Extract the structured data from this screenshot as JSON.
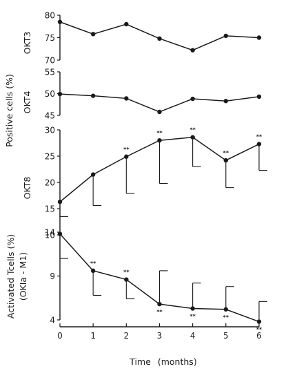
{
  "chart_data": [
    {
      "type": "line",
      "panel": "OKT3",
      "ylabel": "OKT3",
      "ylim": [
        70,
        80
      ],
      "yticks": [
        70,
        75,
        80
      ],
      "x": [
        0,
        1,
        2,
        3,
        4,
        5,
        6
      ],
      "series": [
        {
          "values": [
            78.5,
            75.8,
            78.0,
            74.8,
            72.2,
            75.4,
            75.0
          ]
        }
      ]
    },
    {
      "type": "line",
      "panel": "OKT4",
      "ylabel": "OKT4",
      "ylim": [
        45,
        55
      ],
      "yticks": [
        45,
        50,
        55
      ],
      "x": [
        0,
        1,
        2,
        3,
        4,
        5,
        6
      ],
      "series": [
        {
          "values": [
            49.9,
            49.5,
            48.9,
            45.8,
            48.8,
            48.3,
            49.3
          ]
        }
      ]
    },
    {
      "type": "line",
      "panel": "OKT8",
      "ylabel": "OKT8",
      "ylim": [
        10,
        30
      ],
      "yticks": [
        10,
        15,
        20,
        25,
        30
      ],
      "x": [
        0,
        1,
        2,
        3,
        4,
        5,
        6
      ],
      "series": [
        {
          "values": [
            16.3,
            21.5,
            24.9,
            28.0,
            28.6,
            24.2,
            27.3
          ],
          "error_low": [
            13.5,
            15.6,
            17.9,
            19.8,
            23.0,
            19.0,
            22.3
          ],
          "significance": [
            "",
            "",
            "**",
            "**",
            "**",
            "**",
            "**"
          ],
          "significance_position": "above"
        }
      ]
    },
    {
      "type": "line",
      "panel": "Activated T cells",
      "ylabel_lines": [
        "Activated Tcells (%)",
        "(OKIa - M1)"
      ],
      "ylim": [
        4,
        14
      ],
      "yticks": [
        4,
        9,
        14
      ],
      "x": [
        0,
        1,
        2,
        3,
        4,
        5,
        6
      ],
      "series": [
        {
          "values": [
            13.8,
            9.6,
            8.6,
            5.8,
            5.3,
            5.2,
            3.8
          ],
          "error_high": [
            null,
            null,
            null,
            9.6,
            8.2,
            7.8,
            6.1
          ],
          "error_low": [
            11.0,
            6.8,
            6.4,
            null,
            null,
            null,
            null
          ],
          "significance": [
            "",
            "**",
            "**",
            "**",
            "**",
            "**",
            "**"
          ],
          "significance_position": [
            "",
            "above",
            "above",
            "below",
            "below",
            "below",
            "below"
          ]
        }
      ]
    }
  ],
  "shared": {
    "positive_cells_label": "Positive cells (%)",
    "xlabel": "Time (months)",
    "xticks": [
      "0",
      "1",
      "2",
      "3",
      "4",
      "5",
      "6"
    ]
  }
}
